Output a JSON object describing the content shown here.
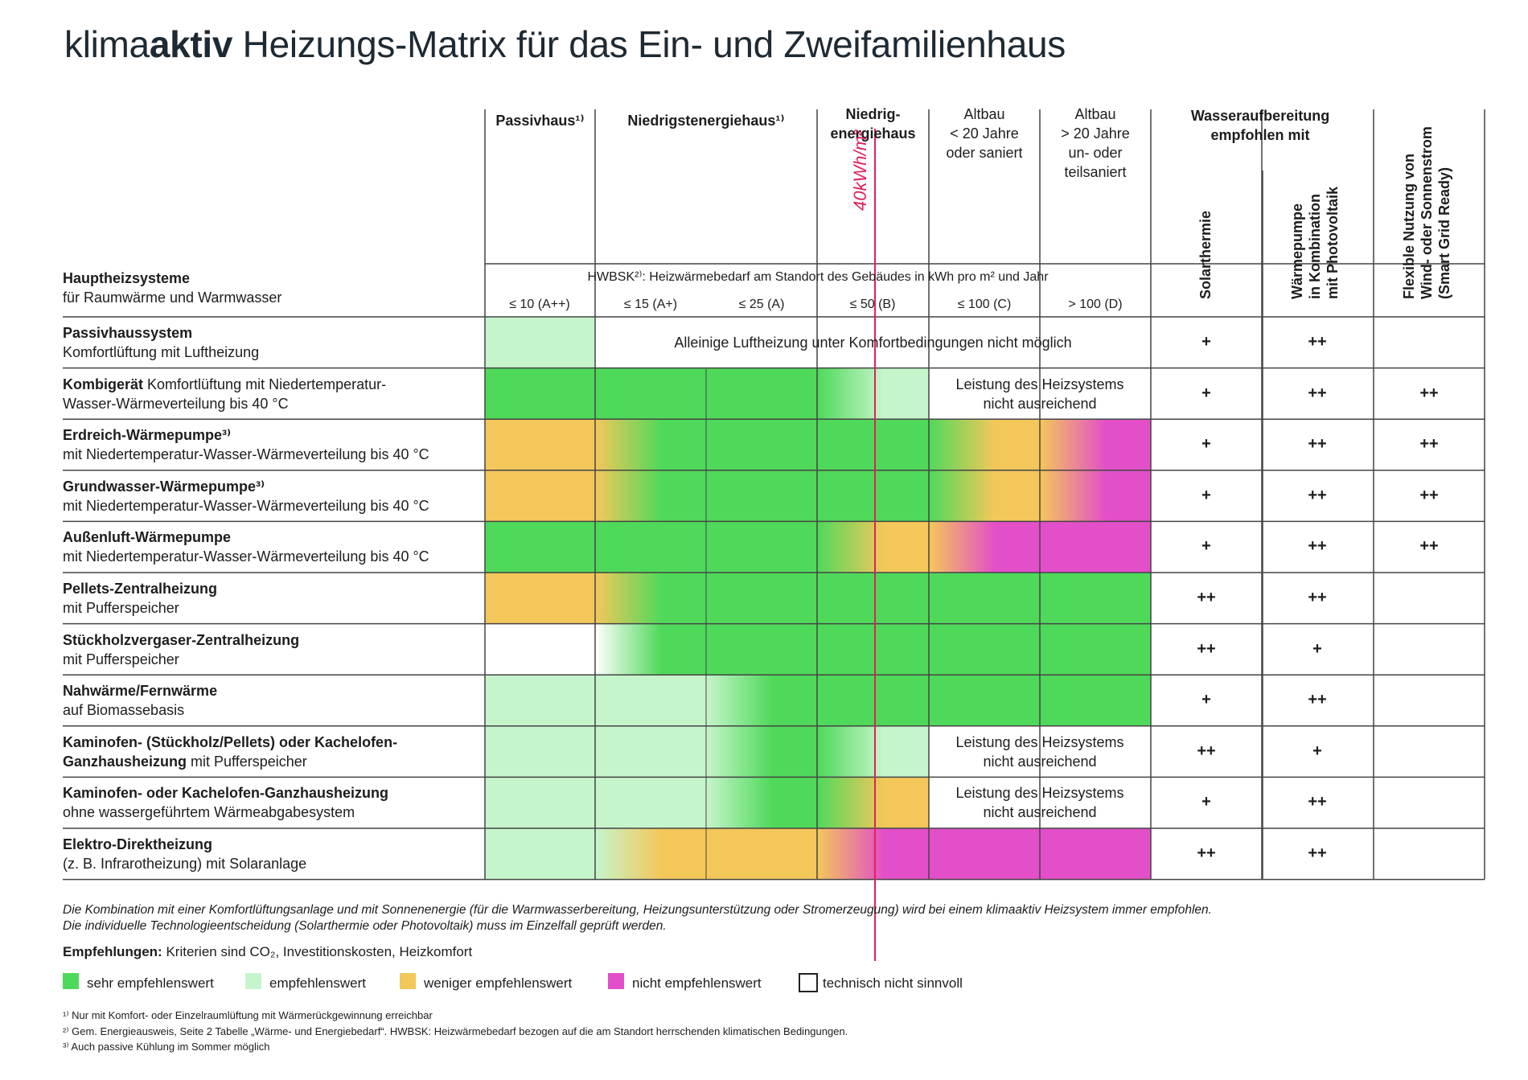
{
  "title": {
    "prefix": "klima",
    "bold": "aktiv",
    "rest": " Heizungs-Matrix für das Ein- und Zweifamilienhaus"
  },
  "columns": [
    {
      "lines": [
        "Passivhaus¹⁾"
      ],
      "bold": true
    },
    {
      "lines": [
        "Niedrigstenergiehaus¹⁾"
      ],
      "bold": true
    },
    {
      "lines": [
        "Niedrig-",
        "energiehaus"
      ],
      "bold": true
    },
    {
      "lines": [
        "Altbau",
        "< 20 Jahre",
        "oder saniert"
      ],
      "bold": false
    },
    {
      "lines": [
        "Altbau",
        "> 20 Jahre",
        "un- oder",
        "teilsaniert"
      ],
      "bold": false
    }
  ],
  "water_header": [
    "Wasseraufbereitung",
    "empfohlen mit"
  ],
  "vertical_headers": [
    "Solarthermie",
    "Wärmepumpe\nin Kombination\nmit Photovoltaik",
    "Flexible Nutzung von\nWind- oder Sonnenstrom\n(Smart Grid Ready)"
  ],
  "hwb_caption": "HWBSK²⁾: Heizwärmebedarf am Standort des Gebäudes in kWh pro m² und Jahr",
  "hwb_classes": [
    "≤ 10 (A++)",
    "≤ 15 (A+)",
    "≤ 25 (A)",
    "≤ 50 (B)",
    "≤ 100 (C)",
    "> 100 (D)"
  ],
  "main_header": {
    "bold": "Hauptheizsysteme",
    "sub": "für Raumwärme und Warmwasser"
  },
  "rows": [
    {
      "bold": "Passivhaussystem",
      "rest1": "",
      "line2": "Komfortlüftung mit Luftheizung",
      "marks": [
        "+",
        "++",
        ""
      ]
    },
    {
      "bold": "Kombigerät",
      "rest1": " Komfortlüftung mit Niedertemperatur-",
      "line2": "Wasser-Wärmeverteilung bis 40 °C",
      "marks": [
        "+",
        "++",
        "++"
      ]
    },
    {
      "bold": "Erdreich-Wärmepumpe³⁾",
      "rest1": "",
      "line2": "mit Niedertemperatur-Wasser-Wärmeverteilung bis 40 °C",
      "marks": [
        "+",
        "++",
        "++"
      ]
    },
    {
      "bold": "Grundwasser-Wärmepumpe³⁾",
      "rest1": "",
      "line2": "mit Niedertemperatur-Wasser-Wärmeverteilung bis 40 °C",
      "marks": [
        "+",
        "++",
        "++"
      ]
    },
    {
      "bold": "Außenluft-Wärmepumpe",
      "rest1": "",
      "line2": "mit Niedertemperatur-Wasser-Wärmeverteilung bis 40 °C",
      "marks": [
        "+",
        "++",
        "++"
      ]
    },
    {
      "bold": "Pellets-Zentralheizung",
      "rest1": "",
      "line2": "mit Pufferspeicher",
      "marks": [
        "++",
        "++",
        ""
      ]
    },
    {
      "bold": "Stückholzvergaser-Zentralheizung",
      "rest1": "",
      "line2": "mit Pufferspeicher",
      "marks": [
        "++",
        "+",
        ""
      ]
    },
    {
      "bold": "Nahwärme/Fernwärme",
      "rest1": "",
      "line2": "auf Biomassebasis",
      "marks": [
        "+",
        "++",
        ""
      ]
    },
    {
      "bold": "Kaminofen- (Stückholz/Pellets) oder Kachelofen-",
      "rest1": "",
      "line2b": "Ganzhausheizung",
      "line2": " mit Pufferspeicher",
      "marks": [
        "++",
        "+",
        ""
      ]
    },
    {
      "bold": "Kaminofen- oder Kachelofen-Ganzhausheizung",
      "rest1": "",
      "line2": "ohne wassergeführtem Wärmeabgabesystem",
      "marks": [
        "+",
        "++",
        ""
      ]
    },
    {
      "bold": "Elektro-Direktheizung",
      "rest1": "",
      "line2": "(z. B. Infrarotheizung) mit Solaranlage",
      "marks": [
        "++",
        "++",
        ""
      ]
    }
  ],
  "cell_notes": {
    "passiv_note": "Alleinige Luftheizung unter Komfortbedingungen nicht möglich",
    "insufficient": [
      "Leistung des Heizsystems",
      "nicht ausreichend"
    ]
  },
  "cell_ratings": [
    [
      "lg",
      "na",
      "na",
      "na",
      "na",
      "na"
    ],
    [
      "g",
      "g",
      "g",
      "lg",
      "na",
      "na"
    ],
    [
      "o",
      "g",
      "g",
      "g",
      "o",
      "p"
    ],
    [
      "o",
      "g",
      "g",
      "g",
      "o",
      "p"
    ],
    [
      "g",
      "g",
      "g",
      "o",
      "p",
      "p"
    ],
    [
      "o",
      "g",
      "g",
      "g",
      "g",
      "g"
    ],
    [
      "w",
      "g",
      "g",
      "g",
      "g",
      "g"
    ],
    [
      "lg",
      "lg",
      "g",
      "g",
      "g",
      "g"
    ],
    [
      "lg",
      "lg",
      "g",
      "lg",
      "na",
      "na"
    ],
    [
      "lg",
      "lg",
      "g",
      "o",
      "na",
      "na"
    ],
    [
      "lg",
      "o",
      "o",
      "p",
      "p",
      "p"
    ]
  ],
  "colors": {
    "green": "#4fd95a",
    "lightgreen": "#c6f5cc",
    "orange": "#f4c75a",
    "pink": "#e24fc8",
    "line": "#444444",
    "annotation": "#e0205a"
  },
  "annotation_text": "40kWh/m²",
  "notes": [
    "Die Kombination mit einer Komfortlüftungsanlage und mit Sonnenenergie (für die Warmwasserbereitung, Heizungsunterstützung oder Stromerzeugung) wird bei einem klimaaktiv Heizsystem immer empfohlen.",
    "Die individuelle Technologieentscheidung (Solarthermie oder Photovoltaik) muss im Einzelfall geprüft werden."
  ],
  "recommendation": {
    "bold": "Empfehlungen:",
    "rest": " Kriterien sind CO₂, Investitionskosten, Heizkomfort"
  },
  "legend": [
    {
      "color": "#4fd95a",
      "label": "sehr empfehlenswert"
    },
    {
      "color": "#c6f5cc",
      "label": "empfehlenswert"
    },
    {
      "color": "#f4c75a",
      "label": "weniger empfehlenswert"
    },
    {
      "color": "#e24fc8",
      "label": "nicht empfehlenswert"
    },
    {
      "color": "#ffffff",
      "label": "technisch nicht sinnvoll"
    }
  ],
  "footnotes": [
    "¹⁾ Nur mit Komfort- oder Einzelraumlüftung mit Wärmerückgewinnung erreichbar",
    "²⁾ Gem. Energieausweis, Seite 2 Tabelle „Wärme- und Energiebedarf“. HWBSK: Heizwärmebedarf bezogen auf die am Standort herrschenden klimatischen Bedingungen.",
    "³⁾ Auch passive Kühlung im Sommer möglich"
  ]
}
